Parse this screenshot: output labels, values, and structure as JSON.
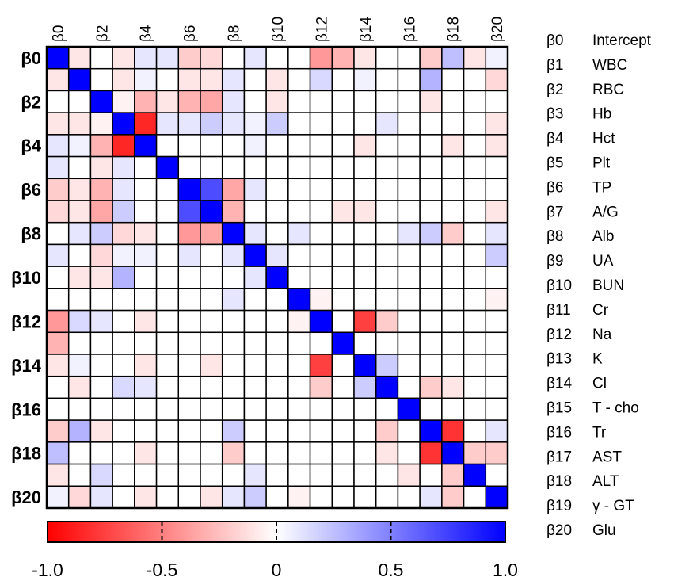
{
  "chart_data": {
    "type": "heatmap",
    "title": "",
    "row_labels": [
      "β0",
      "",
      "β2",
      "",
      "β4",
      "",
      "β6",
      "",
      "β8",
      "",
      "β10",
      "",
      "β12",
      "",
      "β14",
      "",
      "β16",
      "",
      "β18",
      "",
      "β20"
    ],
    "col_labels": [
      "β0",
      "",
      "β2",
      "",
      "β4",
      "",
      "β6",
      "",
      "β8",
      "",
      "β10",
      "",
      "β12",
      "",
      "β14",
      "",
      "β16",
      "",
      "β18",
      "",
      "β20"
    ],
    "legend": [
      {
        "key": "β0",
        "name": "Intercept"
      },
      {
        "key": "β1",
        "name": "WBC"
      },
      {
        "key": "β2",
        "name": "RBC"
      },
      {
        "key": "β3",
        "name": "Hb"
      },
      {
        "key": "β4",
        "name": "Hct"
      },
      {
        "key": "β5",
        "name": "Plt"
      },
      {
        "key": "β6",
        "name": "TP"
      },
      {
        "key": "β7",
        "name": "A/G"
      },
      {
        "key": "β8",
        "name": "Alb"
      },
      {
        "key": "β9",
        "name": "UA"
      },
      {
        "key": "β10",
        "name": "BUN"
      },
      {
        "key": "β11",
        "name": "Cr"
      },
      {
        "key": "β12",
        "name": "Na"
      },
      {
        "key": "β13",
        "name": "K"
      },
      {
        "key": "β14",
        "name": "Cl"
      },
      {
        "key": "β15",
        "name": "T - cho"
      },
      {
        "key": "β16",
        "name": "Tr"
      },
      {
        "key": "β17",
        "name": "AST"
      },
      {
        "key": "β18",
        "name": "ALT"
      },
      {
        "key": "β19",
        "name": "γ - GT"
      },
      {
        "key": "β20",
        "name": "Glu"
      }
    ],
    "colorbar": {
      "range": [
        -1.0,
        1.0
      ],
      "ticks": [
        "-1.0",
        "-0.5",
        "0",
        "0.5",
        "1.0"
      ],
      "low_color": "#ff0000",
      "mid_color": "#ffffff",
      "high_color": "#0000ff"
    },
    "values": [
      [
        1,
        -0.1,
        0,
        -0.1,
        0.1,
        0.1,
        -0.2,
        -0.15,
        0,
        0.1,
        0,
        0,
        -0.4,
        -0.3,
        -0.1,
        0,
        0,
        -0.2,
        0.25,
        -0.1,
        0.05
      ],
      [
        -0.1,
        1,
        0,
        -0.1,
        0.05,
        0,
        -0.1,
        -0.1,
        0.1,
        0,
        -0.1,
        0,
        0.15,
        0,
        0.05,
        0,
        0,
        0.3,
        0,
        0,
        -0.15
      ],
      [
        0,
        0,
        1,
        -0.05,
        -0.3,
        -0.1,
        -0.3,
        -0.35,
        0.1,
        0,
        -0.1,
        0,
        0,
        0,
        0,
        0,
        0,
        -0.1,
        0,
        0,
        0
      ],
      [
        -0.1,
        -0.1,
        -0.05,
        1,
        -0.85,
        0.1,
        0.1,
        0.2,
        0.1,
        0.05,
        0.2,
        0,
        0,
        0,
        0,
        0.1,
        0,
        0,
        0,
        0,
        -0.1
      ],
      [
        0.1,
        0.05,
        -0.3,
        -0.85,
        1,
        0,
        0,
        0,
        0,
        0.05,
        0,
        0,
        0,
        0,
        -0.1,
        0,
        0,
        0,
        -0.1,
        0,
        -0.1
      ],
      [
        0.1,
        0,
        -0.1,
        0.1,
        0,
        1,
        0,
        0,
        0,
        0,
        0,
        0,
        0,
        0,
        0,
        0,
        0,
        0,
        0,
        0,
        0
      ],
      [
        -0.2,
        -0.1,
        -0.3,
        0.1,
        0,
        0,
        1,
        0.7,
        -0.35,
        0.1,
        0,
        0,
        0,
        0,
        0,
        0,
        0,
        0,
        0,
        0,
        0
      ],
      [
        -0.15,
        -0.1,
        -0.35,
        0.2,
        0,
        0,
        0.7,
        1,
        -0.3,
        0,
        0,
        0,
        0,
        -0.1,
        -0.1,
        0,
        0,
        0,
        0,
        0,
        -0.1
      ],
      [
        0,
        0.1,
        0.2,
        -0.15,
        -0.1,
        0,
        -0.4,
        -0.35,
        1,
        0.1,
        0,
        0.1,
        0,
        0,
        0,
        0,
        0.1,
        0.2,
        -0.2,
        0,
        0.1
      ],
      [
        0.1,
        0,
        -0.15,
        0.05,
        0.05,
        0,
        0.1,
        0,
        0.1,
        1,
        0.1,
        0,
        0,
        0,
        0,
        0,
        0,
        0,
        0,
        0,
        0.2
      ],
      [
        0,
        -0.1,
        -0.1,
        0.3,
        0,
        0,
        0,
        0,
        0,
        0.1,
        1,
        0,
        0,
        0,
        0,
        0,
        0,
        0,
        0,
        0,
        0
      ],
      [
        0,
        0,
        0,
        0,
        0,
        0,
        0,
        0,
        0.1,
        0,
        0,
        1,
        -0.05,
        0,
        0,
        0,
        0,
        0,
        0,
        0,
        -0.05
      ],
      [
        -0.4,
        0.15,
        0.1,
        0,
        -0.1,
        0,
        0,
        0,
        0,
        0,
        0,
        -0.05,
        1,
        0,
        -0.75,
        -0.2,
        0,
        0,
        0,
        0,
        0
      ],
      [
        -0.3,
        0,
        0,
        0,
        0,
        0,
        0,
        0,
        0,
        0,
        0,
        0,
        0,
        1,
        0,
        0,
        0,
        0,
        0,
        0,
        0
      ],
      [
        -0.1,
        0.05,
        0,
        0,
        -0.1,
        0,
        0,
        -0.1,
        0,
        0,
        0,
        0,
        -0.75,
        0,
        1,
        0.2,
        0,
        0,
        0,
        0,
        0
      ],
      [
        0,
        -0.1,
        0,
        0.15,
        0.1,
        0,
        0,
        0,
        0,
        0,
        0,
        0,
        -0.2,
        0,
        0.2,
        1,
        0,
        -0.2,
        -0.1,
        0,
        0
      ],
      [
        0,
        0,
        0,
        0,
        0,
        0,
        0,
        0,
        0,
        0,
        0,
        0,
        0,
        0,
        0,
        0,
        1,
        0,
        0,
        0,
        0
      ],
      [
        -0.2,
        0.3,
        -0.1,
        0,
        0,
        0,
        0,
        0,
        0.2,
        0,
        0,
        0,
        0,
        0,
        0,
        -0.2,
        0,
        1,
        -0.8,
        0,
        0.1
      ],
      [
        0.25,
        0,
        0,
        0,
        -0.1,
        0,
        0,
        0,
        -0.2,
        0,
        0,
        0,
        0,
        0,
        0,
        -0.1,
        0,
        -0.8,
        1,
        -0.2,
        -0.2
      ],
      [
        -0.1,
        0,
        0.15,
        0,
        0,
        0,
        0,
        0,
        0,
        0.1,
        0,
        0,
        0,
        0,
        0,
        0,
        -0.1,
        0,
        -0.2,
        1,
        0
      ],
      [
        0.05,
        -0.15,
        0.1,
        0,
        -0.1,
        0,
        0,
        -0.1,
        0.1,
        0.2,
        0,
        -0.05,
        0,
        0,
        0,
        0,
        0,
        0.1,
        -0.2,
        0,
        1
      ]
    ]
  }
}
